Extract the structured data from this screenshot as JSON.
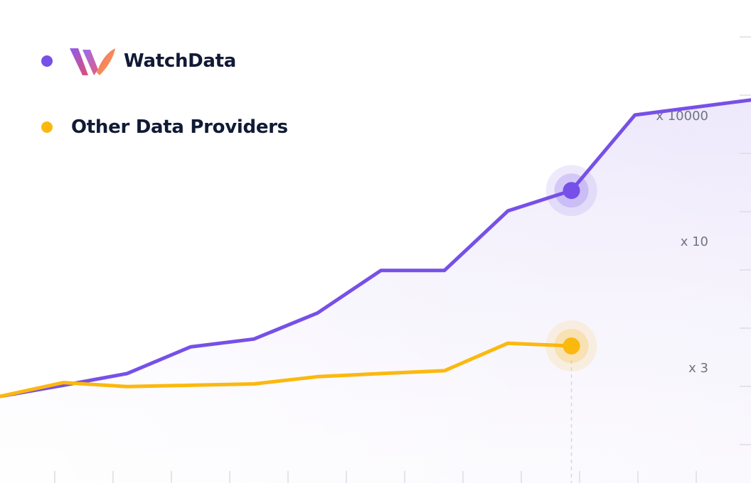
{
  "colors": {
    "watchdata": "#7650E8",
    "other": "#FBB80F",
    "area_fill": "#EFEAFB",
    "tick_text": "#6F7484",
    "grid": "#DCDDE3"
  },
  "legend": {
    "watchdata_label": "WatchData",
    "other_label": "Other Data Providers",
    "watchdata_logo": "watchdata-logo-icon"
  },
  "chart_data": {
    "type": "line",
    "title": "",
    "xlabel": "",
    "ylabel": "",
    "y_scale": "log",
    "y_tick_labels": [
      "x 3",
      "x 10",
      "x 10000"
    ],
    "x_tick_count": 13,
    "grid": false,
    "legend_position": "top-left",
    "highlighted_index": 9,
    "series": [
      {
        "name": "WatchData",
        "values": [
          1.0,
          1.35,
          1.85,
          3.8,
          4.7,
          9.5,
          30,
          30,
          150,
          260,
          2000,
          3000
        ]
      },
      {
        "name": "Other Data Providers",
        "values": [
          1.0,
          1.45,
          1.3,
          1.35,
          1.4,
          1.7,
          1.85,
          2.0,
          4.2,
          3.9,
          null,
          null
        ]
      }
    ]
  }
}
